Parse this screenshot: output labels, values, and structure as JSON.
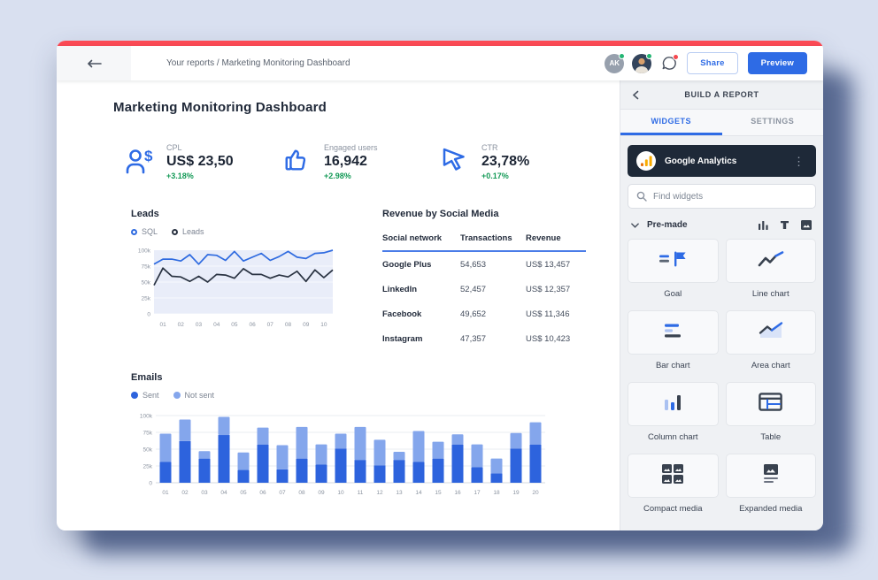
{
  "topbar": {
    "breadcrumb": "Your reports / Marketing Monitoring Dashboard",
    "avatar_initials": "AK",
    "share_label": "Share",
    "preview_label": "Preview"
  },
  "page": {
    "title": "Marketing Monitoring Dashboard"
  },
  "kpis": [
    {
      "icon": "person-dollar-icon",
      "label": "CPL",
      "value": "US$ 23,50",
      "delta": "+3.18%"
    },
    {
      "icon": "thumb-up-icon",
      "label": "Engaged users",
      "value": "16,942",
      "delta": "+2.98%"
    },
    {
      "icon": "cursor-icon",
      "label": "CTR",
      "value": "23,78%",
      "delta": "+0.17%"
    }
  ],
  "chart_data": [
    {
      "type": "line",
      "title": "Leads",
      "legend": [
        {
          "name": "SQL",
          "color": "#2f6be0"
        },
        {
          "name": "Leads",
          "color": "#2a3342"
        }
      ],
      "x_labels": [
        "01",
        "02",
        "03",
        "04",
        "05",
        "06",
        "07",
        "08",
        "09",
        "10"
      ],
      "series": [
        {
          "name": "SQL",
          "color": "#2f6be0",
          "values": [
            78,
            86,
            86,
            83,
            93,
            78,
            93,
            92,
            84,
            98,
            83,
            89,
            95,
            84,
            90,
            98,
            89,
            87,
            95,
            96,
            100
          ]
        },
        {
          "name": "Leads",
          "color": "#2a3342",
          "values": [
            45,
            72,
            59,
            58,
            51,
            59,
            50,
            62,
            61,
            56,
            71,
            62,
            62,
            56,
            61,
            58,
            67,
            51,
            69,
            57,
            69
          ]
        }
      ],
      "y_ticks": [
        "100k",
        "75k",
        "50k",
        "25k",
        "0"
      ],
      "ylim": [
        0,
        100
      ],
      "unit": "k",
      "plot_bg": "#e9edf9",
      "grid": false,
      "legend_position": "top"
    },
    {
      "type": "bar",
      "title": "Emails",
      "stacked": true,
      "legend": [
        {
          "name": "Sent",
          "color": "#2d63dd"
        },
        {
          "name": "Not sent",
          "color": "#84a6ec"
        }
      ],
      "categories": [
        "01",
        "02",
        "03",
        "04",
        "05",
        "06",
        "07",
        "08",
        "09",
        "10",
        "11",
        "12",
        "13",
        "14",
        "15",
        "16",
        "17",
        "18",
        "19",
        "20"
      ],
      "series": [
        {
          "name": "Sent",
          "color": "#2d63dd",
          "values": [
            31,
            62,
            36,
            71,
            19,
            57,
            20,
            36,
            27,
            51,
            34,
            26,
            34,
            31,
            36,
            57,
            23,
            14,
            51,
            57
          ]
        },
        {
          "name": "Not sent",
          "color": "#84a6ec",
          "values": [
            42,
            32,
            11,
            27,
            26,
            25,
            36,
            47,
            30,
            22,
            49,
            38,
            12,
            46,
            25,
            15,
            34,
            22,
            23,
            33
          ]
        }
      ],
      "y_ticks": [
        "100k",
        "75k",
        "50k",
        "25k",
        "0"
      ],
      "ylim": [
        0,
        100
      ],
      "unit": "k",
      "grid": true,
      "legend_position": "top"
    }
  ],
  "revenue_table": {
    "title": "Revenue by Social Media",
    "headers": [
      "Social network",
      "Transactions",
      "Revenue"
    ],
    "rows": [
      [
        "Google Plus",
        "54,653",
        "US$ 13,457"
      ],
      [
        "LinkedIn",
        "52,457",
        "US$ 12,357"
      ],
      [
        "Facebook",
        "49,652",
        "US$ 11,346"
      ],
      [
        "Instagram",
        "47,357",
        "US$ 10,423"
      ]
    ]
  },
  "sidebar": {
    "title": "BUILD A REPORT",
    "tabs": [
      {
        "label": "WIDGETS",
        "active": true
      },
      {
        "label": "SETTINGS",
        "active": false
      }
    ],
    "source": {
      "name": "Google Analytics",
      "icon": "google-analytics-logo"
    },
    "search_placeholder": "Find widgets",
    "section_label": "Pre-made",
    "toolbar_icons": [
      "stats-icon",
      "text-icon",
      "media-icon"
    ],
    "widgets": [
      {
        "icon": "goal-icon",
        "label": "Goal"
      },
      {
        "icon": "line-chart-icon",
        "label": "Line chart"
      },
      {
        "icon": "bar-chart-icon",
        "label": "Bar chart"
      },
      {
        "icon": "area-chart-icon",
        "label": "Area chart"
      },
      {
        "icon": "column-chart-icon",
        "label": "Column chart"
      },
      {
        "icon": "table-icon",
        "label": "Table"
      },
      {
        "icon": "compact-media-icon",
        "label": "Compact media"
      },
      {
        "icon": "expanded-media-icon",
        "label": "Expanded media"
      }
    ]
  },
  "colors": {
    "accent": "#2e6be5",
    "positive": "#149a57",
    "alert_strip": "#fb4a55",
    "source_card": "#1e2938",
    "bar_sent": "#2d63dd",
    "bar_not_sent": "#84a6ec",
    "line_sql": "#2f6be0",
    "line_leads": "#2a3342",
    "sidebar_bg": "#eff1f4"
  }
}
